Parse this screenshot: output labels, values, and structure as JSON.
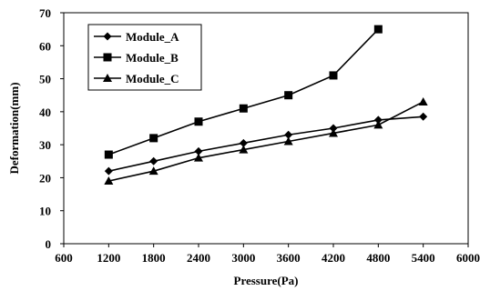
{
  "chart_data": {
    "type": "line",
    "title": "",
    "xlabel": "Pressure(Pa)",
    "ylabel": "Deformation(mm)",
    "xlim": [
      600,
      6000
    ],
    "ylim": [
      0,
      70
    ],
    "x_ticks": [
      600,
      1200,
      1800,
      2400,
      3000,
      3600,
      4200,
      4800,
      5400,
      6000
    ],
    "y_ticks": [
      0,
      10,
      20,
      30,
      40,
      50,
      60,
      70
    ],
    "grid": false,
    "legend": "top-left",
    "series": [
      {
        "name": "Module_A",
        "marker": "diamond",
        "x": [
          1200,
          1800,
          2400,
          3000,
          3600,
          4200,
          4800,
          5400
        ],
        "y": [
          22,
          25,
          28,
          30.5,
          33,
          35,
          37.5,
          38.5
        ]
      },
      {
        "name": "Module_B",
        "marker": "square",
        "x": [
          1200,
          1800,
          2400,
          3000,
          3600,
          4200,
          4800
        ],
        "y": [
          27,
          32,
          37,
          41,
          45,
          51,
          65
        ]
      },
      {
        "name": "Module_C",
        "marker": "triangle",
        "x": [
          1200,
          1800,
          2400,
          3000,
          3600,
          4200,
          4800,
          5400
        ],
        "y": [
          19,
          22,
          26,
          28.5,
          31,
          33.5,
          36,
          43
        ]
      }
    ],
    "colors": {
      "line": "#000000",
      "marker": "#000000"
    }
  }
}
